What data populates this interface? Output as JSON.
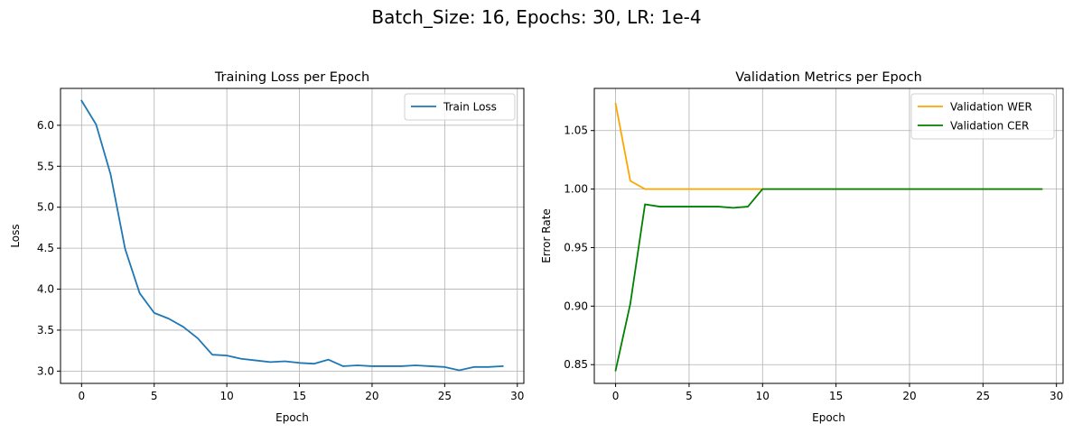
{
  "figure": {
    "suptitle": "Batch_Size: 16, Epochs: 30, LR: 1e-4"
  },
  "chart_data": [
    {
      "type": "line",
      "title": "Training Loss per Epoch",
      "xlabel": "Epoch",
      "ylabel": "Loss",
      "xlim": [
        -1.45,
        30.45
      ],
      "ylim": [
        2.85,
        6.45
      ],
      "xticks": [
        0,
        5,
        10,
        15,
        20,
        25,
        30
      ],
      "yticks": [
        3.0,
        3.5,
        4.0,
        4.5,
        5.0,
        5.5,
        6.0
      ],
      "ytick_format": 1,
      "grid": true,
      "legend": "upper right",
      "x": [
        0,
        1,
        2,
        3,
        4,
        5,
        6,
        7,
        8,
        9,
        10,
        11,
        12,
        13,
        14,
        15,
        16,
        17,
        18,
        19,
        20,
        21,
        22,
        23,
        24,
        25,
        26,
        27,
        28,
        29
      ],
      "series": [
        {
          "name": "Train Loss",
          "color": "#1f77b4",
          "values": [
            6.3,
            6.01,
            5.4,
            4.49,
            3.95,
            3.71,
            3.64,
            3.54,
            3.4,
            3.2,
            3.19,
            3.15,
            3.13,
            3.11,
            3.12,
            3.1,
            3.09,
            3.14,
            3.06,
            3.07,
            3.06,
            3.06,
            3.06,
            3.07,
            3.06,
            3.05,
            3.01,
            3.05,
            3.05,
            3.06
          ]
        }
      ]
    },
    {
      "type": "line",
      "title": "Validation Metrics per Epoch",
      "xlabel": "Epoch",
      "ylabel": "Error Rate",
      "xlim": [
        -1.45,
        30.45
      ],
      "ylim": [
        0.834,
        1.086
      ],
      "xticks": [
        0,
        5,
        10,
        15,
        20,
        25,
        30
      ],
      "yticks": [
        0.85,
        0.9,
        0.95,
        1.0,
        1.05
      ],
      "ytick_format": 2,
      "grid": true,
      "legend": "upper right",
      "x": [
        0,
        1,
        2,
        3,
        4,
        5,
        6,
        7,
        8,
        9,
        10,
        11,
        12,
        13,
        14,
        15,
        16,
        17,
        18,
        19,
        20,
        21,
        22,
        23,
        24,
        25,
        26,
        27,
        28,
        29
      ],
      "series": [
        {
          "name": "Validation WER",
          "color": "#ffa500",
          "values": [
            1.073,
            1.007,
            1.0,
            1.0,
            1.0,
            1.0,
            1.0,
            1.0,
            1.0,
            1.0,
            1.0,
            1.0,
            1.0,
            1.0,
            1.0,
            1.0,
            1.0,
            1.0,
            1.0,
            1.0,
            1.0,
            1.0,
            1.0,
            1.0,
            1.0,
            1.0,
            1.0,
            1.0,
            1.0,
            1.0
          ]
        },
        {
          "name": "Validation CER",
          "color": "#008000",
          "values": [
            0.845,
            0.902,
            0.987,
            0.985,
            0.985,
            0.985,
            0.985,
            0.985,
            0.984,
            0.985,
            1.0,
            1.0,
            1.0,
            1.0,
            1.0,
            1.0,
            1.0,
            1.0,
            1.0,
            1.0,
            1.0,
            1.0,
            1.0,
            1.0,
            1.0,
            1.0,
            1.0,
            1.0,
            1.0,
            1.0
          ]
        }
      ]
    }
  ]
}
